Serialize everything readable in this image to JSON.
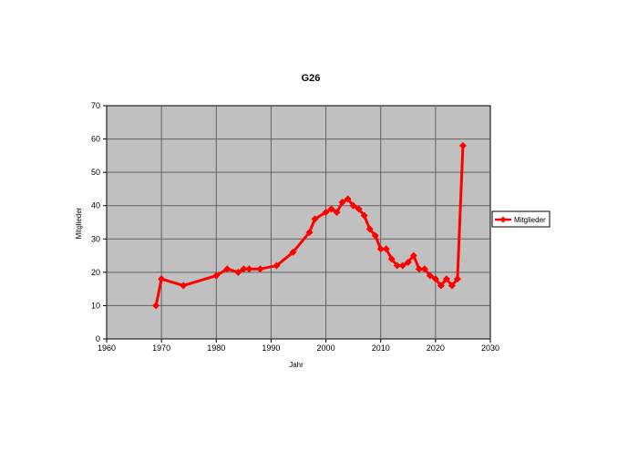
{
  "chart_data": {
    "type": "line",
    "title": "G26",
    "xlabel": "Jahr",
    "ylabel": "Mitglieder",
    "xlim": [
      1960,
      2030
    ],
    "ylim": [
      0,
      70
    ],
    "xticks": [
      1960,
      1970,
      1980,
      1990,
      2000,
      2010,
      2020,
      2030
    ],
    "yticks": [
      0,
      10,
      20,
      30,
      40,
      50,
      60,
      70
    ],
    "grid": true,
    "legend_position": "right",
    "plot_background": "#c0c0c0",
    "series": [
      {
        "name": "Mitglieder",
        "color": "#ff0000",
        "marker": "diamond",
        "x": [
          1969,
          1970,
          1974,
          1980,
          1982,
          1984,
          1985,
          1986,
          1988,
          1991,
          1994,
          1997,
          1998,
          2000,
          2001,
          2002,
          2003,
          2004,
          2005,
          2006,
          2007,
          2008,
          2009,
          2010,
          2011,
          2012,
          2013,
          2014,
          2015,
          2016,
          2017,
          2018,
          2019,
          2020,
          2021,
          2022,
          2023,
          2024,
          2025
        ],
        "y": [
          10,
          18,
          16,
          19,
          21,
          20,
          21,
          21,
          21,
          22,
          26,
          32,
          36,
          38,
          39,
          38,
          41,
          42,
          40,
          39,
          37,
          33,
          31,
          27,
          27,
          24,
          22,
          22,
          23,
          25,
          21,
          21,
          19,
          18,
          16,
          18,
          16,
          18,
          58
        ]
      }
    ]
  }
}
